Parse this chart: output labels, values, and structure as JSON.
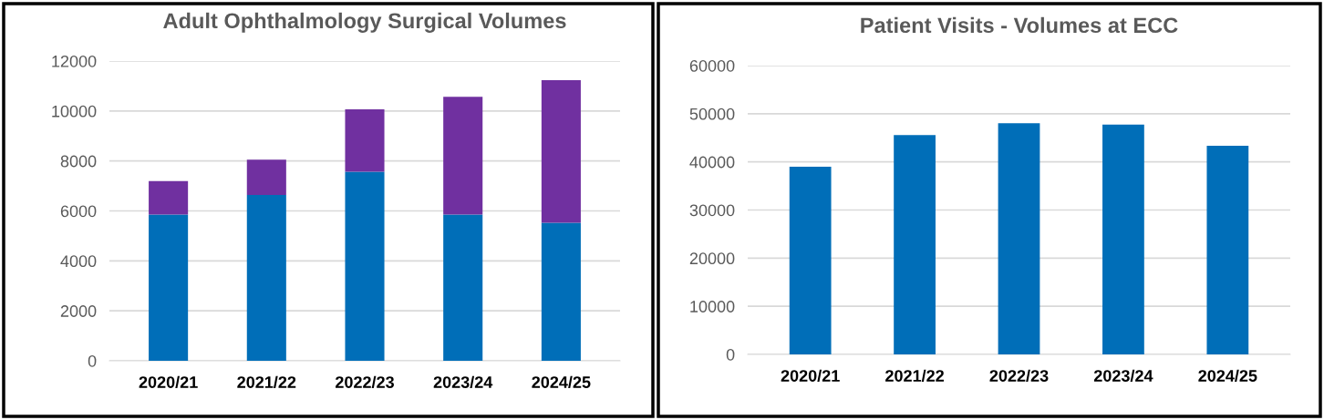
{
  "chart_data": [
    {
      "type": "bar",
      "title": "Adult Ophthalmology Surgical Volumes",
      "categories": [
        "2020/21",
        "2021/22",
        "2022/23",
        "2023/24",
        "2024/25"
      ],
      "stacked": true,
      "series": [
        {
          "color": "#006eb8",
          "values": [
            5850,
            6640,
            7570,
            5850,
            5530
          ]
        },
        {
          "color": "#7030a0",
          "values": [
            1340,
            1410,
            2500,
            4720,
            5700
          ]
        }
      ],
      "ylim": [
        0,
        12000
      ],
      "yticks": [
        0,
        2000,
        4000,
        6000,
        8000,
        10000,
        12000
      ],
      "grid": "y",
      "legend": false
    },
    {
      "type": "bar",
      "title": "Patient Visits - Volumes at ECC",
      "categories": [
        "2020/21",
        "2021/22",
        "2022/23",
        "2023/24",
        "2024/25"
      ],
      "series": [
        {
          "color": "#006eb8",
          "values": [
            39000,
            45550,
            48040,
            47750,
            43350
          ]
        }
      ],
      "ylim": [
        0,
        60000
      ],
      "yticks": [
        0,
        10000,
        20000,
        30000,
        40000,
        50000,
        60000
      ],
      "grid": "y",
      "legend": false
    }
  ]
}
